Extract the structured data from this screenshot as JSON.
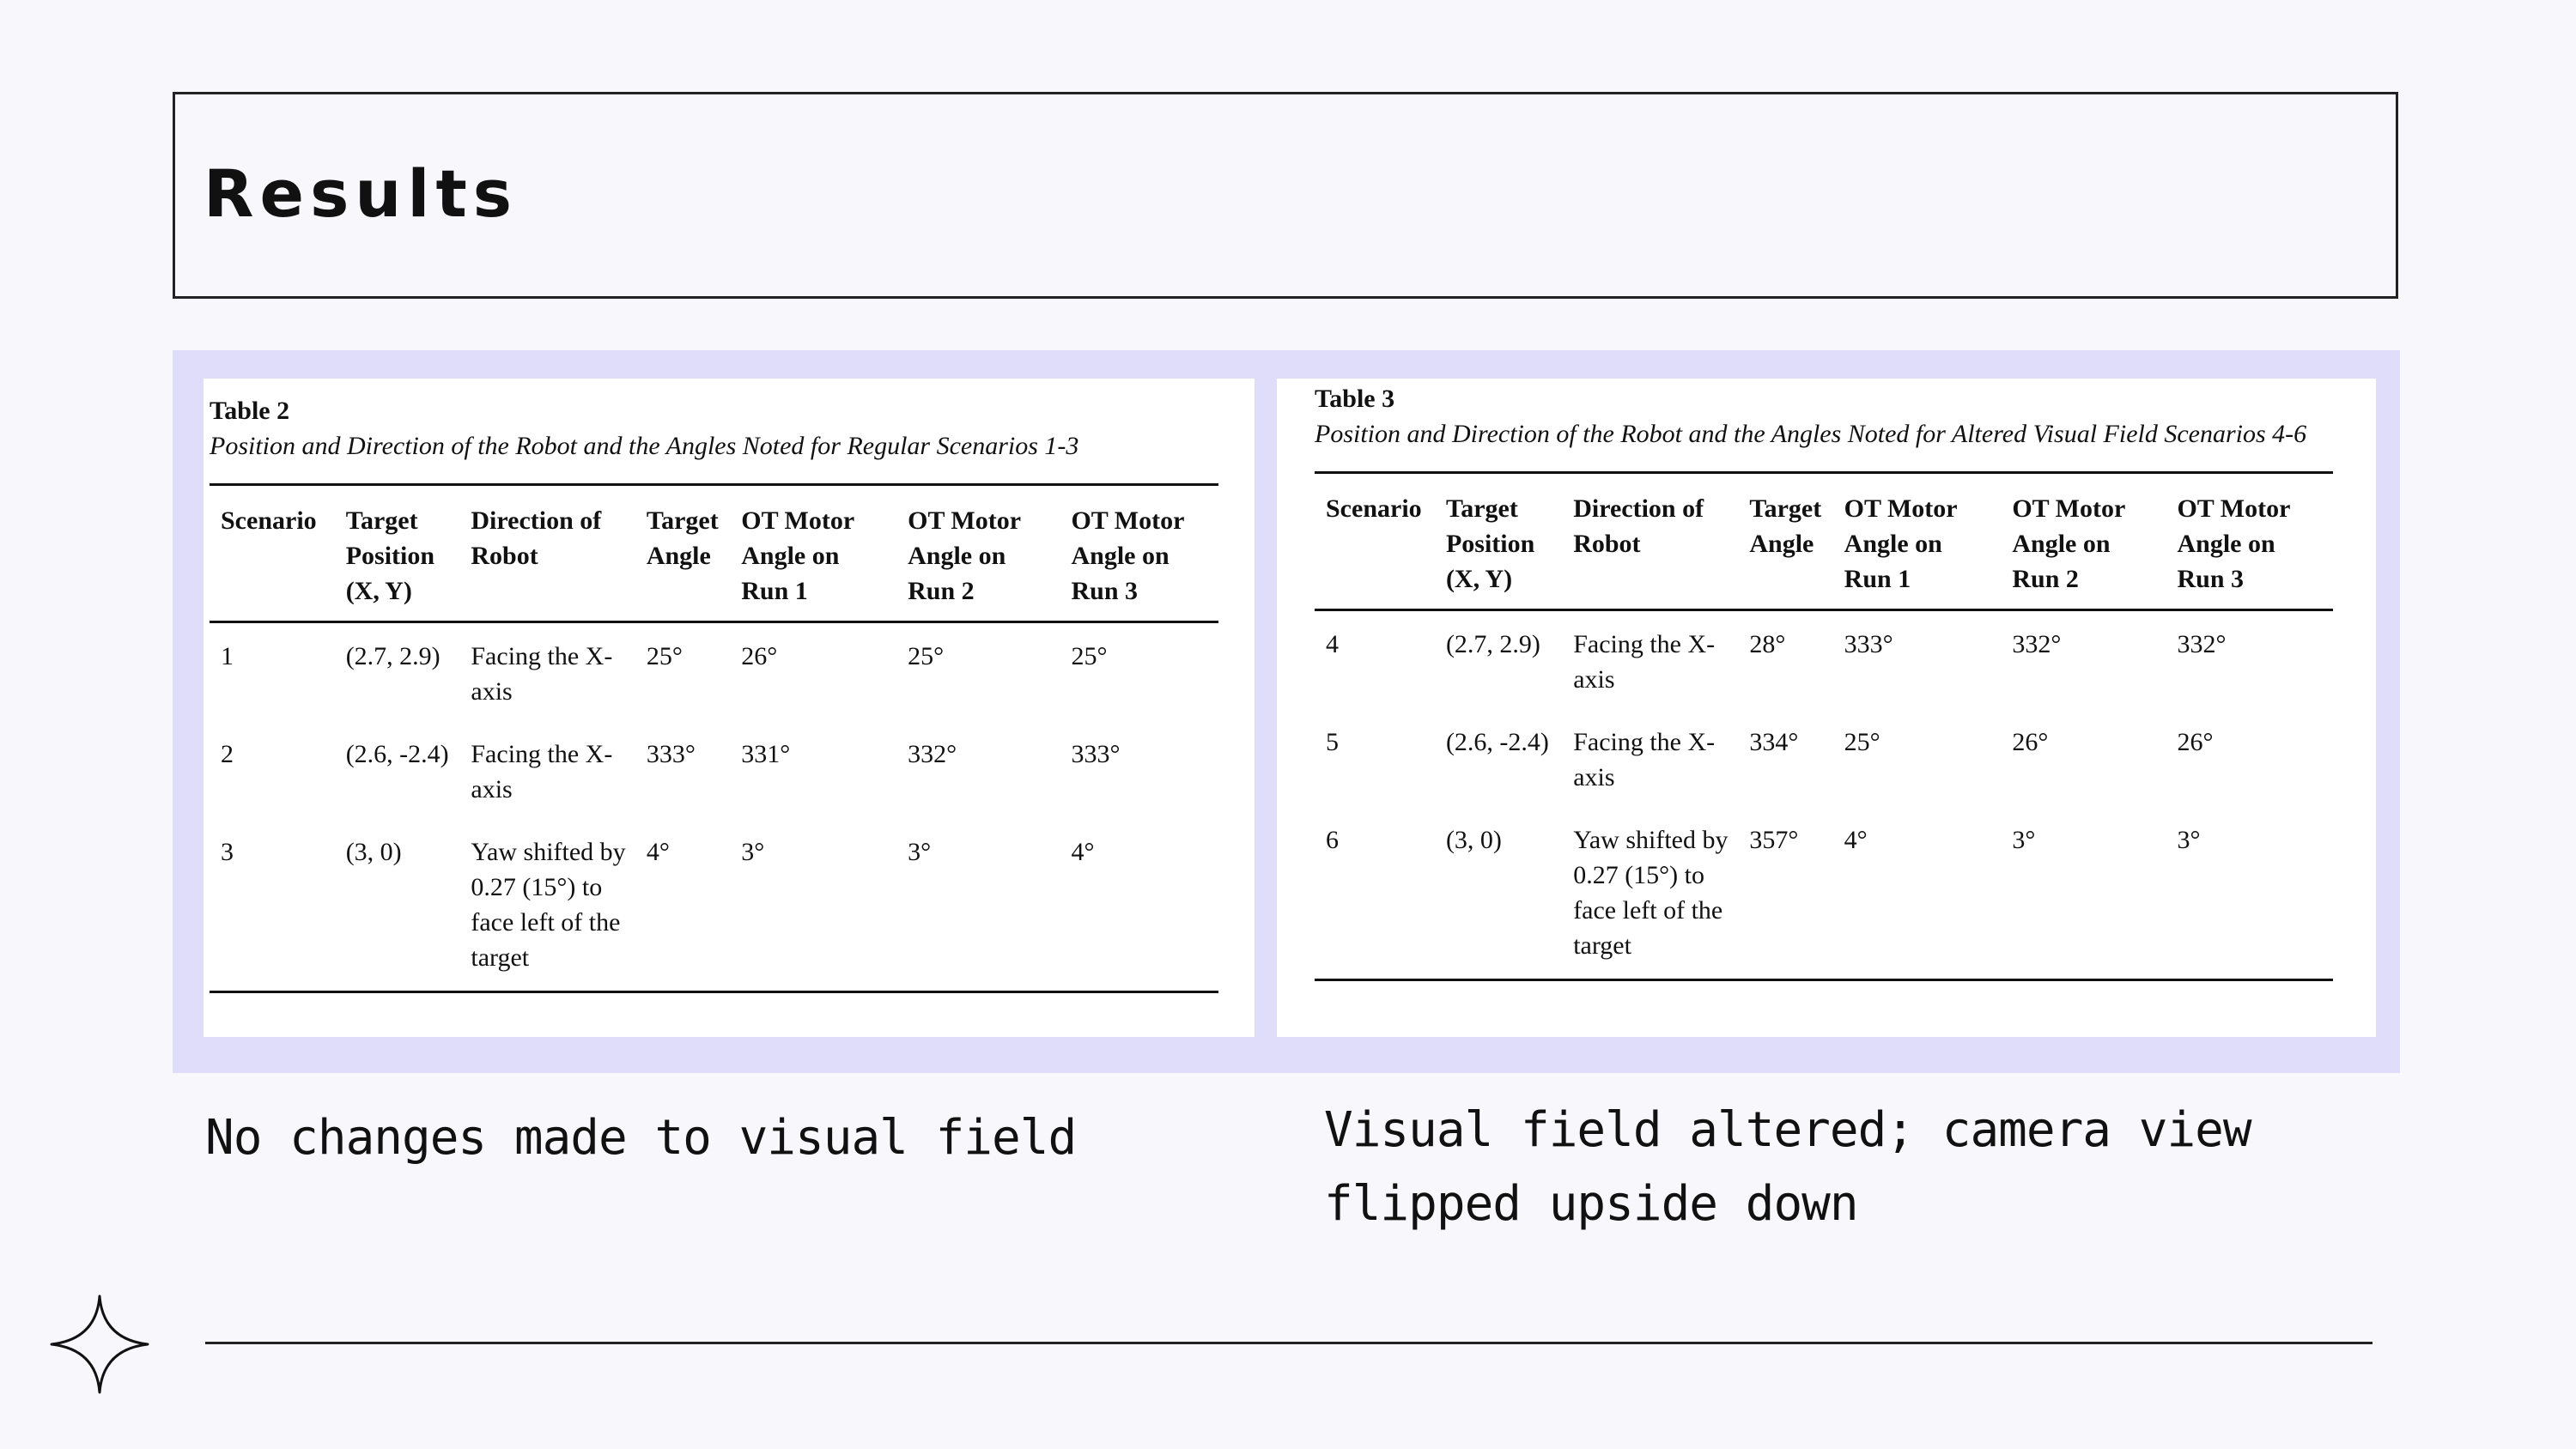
{
  "slide": {
    "title": "Results"
  },
  "table2": {
    "number": "Table 2",
    "caption": "Position and Direction of the Robot and the Angles Noted for Regular Scenarios 1-3",
    "headers": [
      "Scenario",
      "Target Position (X, Y)",
      "Direction of Robot",
      "Target Angle",
      "OT Motor Angle on Run 1",
      "OT Motor Angle on Run 2",
      "OT Motor Angle on Run 3"
    ],
    "rows": [
      [
        "1",
        "(2.7, 2.9)",
        "Facing the X-axis",
        "25°",
        "26°",
        "25°",
        "25°"
      ],
      [
        "2",
        "(2.6, -2.4)",
        "Facing the X-axis",
        "333°",
        "331°",
        "332°",
        "333°"
      ],
      [
        "3",
        "(3, 0)",
        "Yaw shifted by 0.27 (15°) to face left of the target",
        "4°",
        "3°",
        "3°",
        "4°"
      ]
    ]
  },
  "table3": {
    "number": "Table 3",
    "caption": "Position and Direction of the Robot and the Angles Noted for Altered Visual Field Scenarios 4-6",
    "headers": [
      "Scenario",
      "Target Position (X, Y)",
      "Direction of Robot",
      "Target Angle",
      "OT Motor Angle on Run 1",
      "OT Motor Angle on Run 2",
      "OT Motor Angle on Run 3"
    ],
    "rows": [
      [
        "4",
        "(2.7, 2.9)",
        "Facing the X-axis",
        "28°",
        "333°",
        "332°",
        "332°"
      ],
      [
        "5",
        "(2.6, -2.4)",
        "Facing the X-axis",
        "334°",
        "25°",
        "26°",
        "26°"
      ],
      [
        "6",
        "(3, 0)",
        "Yaw shifted by 0.27 (15°) to face left of the target",
        "357°",
        "4°",
        "3°",
        "3°"
      ]
    ]
  },
  "notes": {
    "left": "No changes made to visual field",
    "right": "Visual field altered; camera view flipped upside down"
  },
  "decor": {
    "corner_icon": "four-point-star-icon",
    "accent_panel": "#e0ddfb"
  }
}
